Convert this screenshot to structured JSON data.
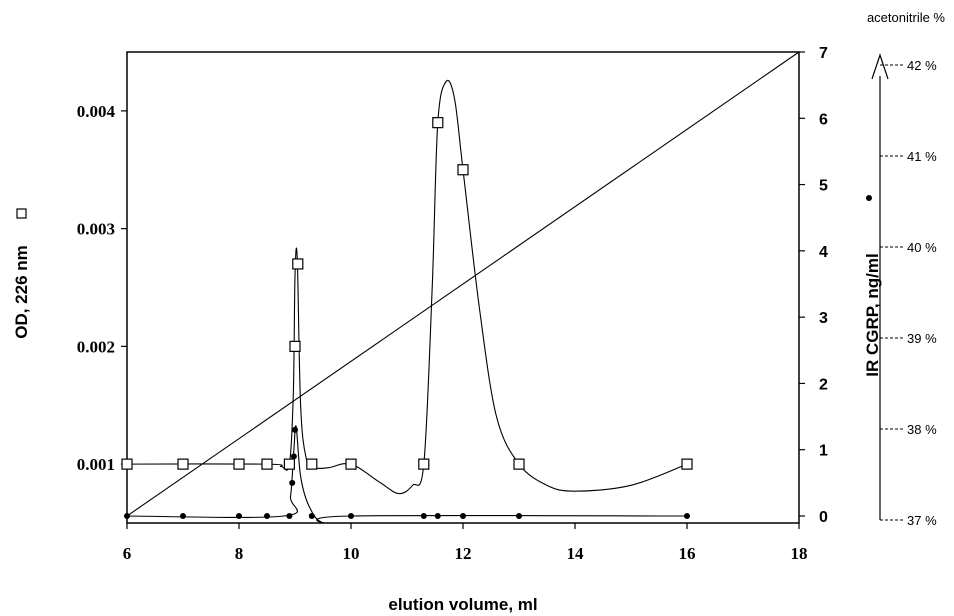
{
  "chart_data": {
    "type": "line",
    "xlabel": "elution volume, ml",
    "ylabel_left": "OD, 226 nm",
    "ylabel_right": "IR CGRP, ng/ml",
    "acetonitrile_label": "acetonitrile %",
    "xlim": [
      6,
      18
    ],
    "ylim_left": [
      0.0005,
      0.0045
    ],
    "ylim_right": [
      0,
      7
    ],
    "x_ticks": [
      "6",
      "8",
      "10",
      "12",
      "14",
      "16",
      "18"
    ],
    "y_left_ticks": [
      "0.001",
      "0.002",
      "0.003",
      "0.004"
    ],
    "y_right_ticks": [
      "0",
      "1",
      "2",
      "3",
      "4",
      "5",
      "6",
      "7"
    ],
    "acetonitrile_ticks": [
      "37 %",
      "38 %",
      "39 %",
      "40 %",
      "41 %",
      "42 %"
    ],
    "acetonitrile_range": [
      37,
      42
    ],
    "series": [
      {
        "name": "OD, 226 nm",
        "marker": "square",
        "axis": "left",
        "points": [
          [
            6,
            0.001
          ],
          [
            7,
            0.001
          ],
          [
            8,
            0.001
          ],
          [
            8.5,
            0.001
          ],
          [
            8.9,
            0.001
          ],
          [
            9,
            0.002
          ],
          [
            9.05,
            0.0027
          ],
          [
            9.3,
            0.001
          ],
          [
            10,
            0.001
          ],
          [
            11.3,
            0.001
          ],
          [
            11.55,
            0.0039
          ],
          [
            12,
            0.0035
          ],
          [
            13,
            0.001
          ],
          [
            16,
            0.001
          ]
        ],
        "curve": [
          [
            6,
            0.001
          ],
          [
            8.5,
            0.001
          ],
          [
            8.75,
            0.00098
          ],
          [
            8.9,
            0.001
          ],
          [
            8.97,
            0.0016
          ],
          [
            9.0,
            0.0026
          ],
          [
            9.04,
            0.00275
          ],
          [
            9.1,
            0.0015
          ],
          [
            9.2,
            0.00105
          ],
          [
            9.35,
            0.00097
          ],
          [
            9.6,
            0.00097
          ],
          [
            10,
            0.001
          ],
          [
            10.5,
            0.00085
          ],
          [
            10.85,
            0.00075
          ],
          [
            11.1,
            0.00082
          ],
          [
            11.3,
            0.001
          ],
          [
            11.45,
            0.0025
          ],
          [
            11.55,
            0.0039
          ],
          [
            11.7,
            0.00425
          ],
          [
            11.85,
            0.0041
          ],
          [
            12,
            0.0035
          ],
          [
            12.3,
            0.0023
          ],
          [
            12.6,
            0.0014
          ],
          [
            13,
            0.001
          ],
          [
            13.5,
            0.00082
          ],
          [
            14,
            0.00077
          ],
          [
            15,
            0.00082
          ],
          [
            16,
            0.001
          ]
        ]
      },
      {
        "name": "IR CGRP, ng/ml",
        "marker": "dot",
        "axis": "right",
        "points": [
          [
            6,
            0
          ],
          [
            7,
            0
          ],
          [
            8,
            0
          ],
          [
            8.5,
            0
          ],
          [
            8.9,
            0
          ],
          [
            8.95,
            0.5
          ],
          [
            8.98,
            0.9
          ],
          [
            9.0,
            1.3
          ],
          [
            9.3,
            0
          ],
          [
            10,
            0
          ],
          [
            11.3,
            0
          ],
          [
            11.55,
            0
          ],
          [
            12,
            0
          ],
          [
            13,
            0
          ],
          [
            16,
            0
          ]
        ],
        "curve": [
          [
            6,
            0
          ],
          [
            8.8,
            0
          ],
          [
            8.92,
            0.3
          ],
          [
            8.98,
            1.0
          ],
          [
            9.02,
            1.35
          ],
          [
            9.1,
            0.6
          ],
          [
            9.25,
            0.15
          ],
          [
            9.5,
            -0.1
          ],
          [
            10,
            0
          ],
          [
            16,
            0
          ]
        ]
      },
      {
        "name": "acetonitrile %",
        "marker": "none",
        "axis": "right",
        "curve": [
          [
            6,
            0
          ],
          [
            18,
            7
          ]
        ]
      }
    ],
    "grid": false,
    "legend": "none"
  }
}
